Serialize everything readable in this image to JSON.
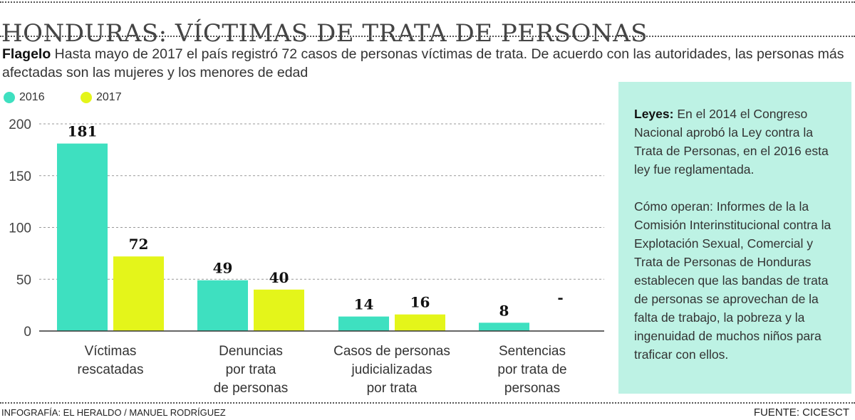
{
  "title": "HONDURAS: VÍCTIMAS DE TRATA DE PERSONAS",
  "subtitle": {
    "lead": "Flagelo",
    "text": " Hasta mayo de 2017 el país registró 72 casos de personas víctimas de trata. De acuerdo con las autoridades, las personas más afectadas son las mujeres y los menores de edad"
  },
  "sidebar": {
    "p1_lead": "Leyes:",
    "p1_text": " En el 2014 el Congreso Nacional aprobó la Ley contra la Trata de Personas, en el 2016 esta ley fue reglamentada.",
    "p2_text": "Cómo operan: Informes de la la Comisión Interinstitucional contra la Explotación Sexual, Comercial y Trata de Personas de Honduras establecen que las bandas de trata de personas se aprovechan de la falta de trabajo, la pobreza y la ingenuidad de muchos niños para traficar con ellos."
  },
  "footer": {
    "credit": "INFOGRAFÍA: EL HERALDO / MANUEL RODRÍGUEZ",
    "source": "FUENTE: CICESCT"
  },
  "chart_data": {
    "type": "bar",
    "categories": [
      [
        "Víctimas",
        "rescatadas"
      ],
      [
        "Denuncias",
        "por trata",
        "de personas"
      ],
      [
        "Casos de personas",
        "judicializadas",
        "por trata"
      ],
      [
        "Sentencias",
        "por trata de",
        "personas"
      ]
    ],
    "series": [
      {
        "name": "2016",
        "color": "#3ee0c0",
        "values": [
          181,
          49,
          14,
          8
        ],
        "labels": [
          "181",
          "49",
          "14",
          "8"
        ]
      },
      {
        "name": "2017",
        "color": "#e4f51a",
        "values": [
          72,
          40,
          16,
          null
        ],
        "labels": [
          "72",
          "40",
          "16",
          "-"
        ]
      }
    ],
    "ylim": [
      0,
      200
    ],
    "yticks": [
      0,
      50,
      100,
      150,
      200
    ],
    "grid": true,
    "legend": "top-left"
  }
}
